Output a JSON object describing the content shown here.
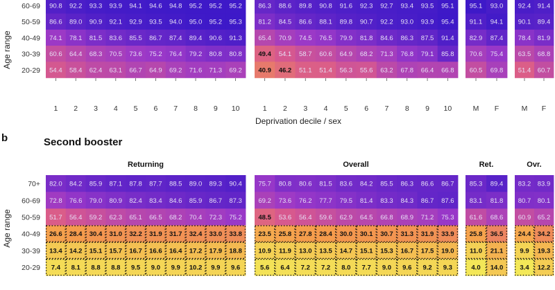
{
  "panel_a": {
    "ylabel": "Age range",
    "xlabel": "Deprivation decile / sex",
    "rows": [
      "60-69",
      "50-59",
      "40-49",
      "30-39",
      "20-29"
    ],
    "deciles": [
      "1",
      "2",
      "3",
      "4",
      "5",
      "6",
      "7",
      "8",
      "9",
      "10"
    ],
    "sexes": [
      "M",
      "F"
    ]
  },
  "panel_b": {
    "letter": "b",
    "title": "Second booster",
    "ylabel": "Age range",
    "rows": [
      "70+",
      "60-69",
      "50-59",
      "40-49",
      "30-39",
      "20-29"
    ],
    "strips": {
      "returning": "Returning",
      "overall": "Overall",
      "ret": "Ret.",
      "ovr": "Ovr."
    }
  },
  "colors": {
    "low": "#f3f35a",
    "mid_low": "#f59a4c",
    "mid": "#d95a8c",
    "mid_high": "#9a38c8",
    "high": "#3a18c8"
  },
  "chart_data": [
    {
      "type": "heatmap",
      "title": "",
      "xlabel": "Deprivation decile / sex",
      "ylabel": "Age range",
      "row_categories": [
        "60-69",
        "50-59",
        "40-49",
        "30-39",
        "20-29"
      ],
      "groups": [
        {
          "columns": [
            "1",
            "2",
            "3",
            "4",
            "5",
            "6",
            "7",
            "8",
            "9",
            "10"
          ],
          "values": [
            [
              90.8,
              92.2,
              93.3,
              93.9,
              94.1,
              94.6,
              94.8,
              95.2,
              95.2,
              95.2
            ],
            [
              86.6,
              89.0,
              90.9,
              92.1,
              92.9,
              93.5,
              94.0,
              95.0,
              95.2,
              95.3
            ],
            [
              74.1,
              78.1,
              81.5,
              83.6,
              85.5,
              86.7,
              87.4,
              89.4,
              90.6,
              91.3
            ],
            [
              60.6,
              64.4,
              68.3,
              70.5,
              73.6,
              75.2,
              76.4,
              79.2,
              80.8,
              80.8
            ],
            [
              54.4,
              58.4,
              62.4,
              63.1,
              66.7,
              64.9,
              69.2,
              71.6,
              71.3,
              69.2
            ]
          ]
        },
        {
          "columns": [
            "1",
            "2",
            "3",
            "4",
            "5",
            "6",
            "7",
            "8",
            "9",
            "10"
          ],
          "values": [
            [
              86.3,
              88.6,
              89.8,
              90.8,
              91.6,
              92.3,
              92.7,
              93.4,
              93.5,
              95.1
            ],
            [
              81.2,
              84.5,
              86.6,
              88.1,
              89.8,
              90.7,
              92.2,
              93.0,
              93.9,
              95.4
            ],
            [
              65.4,
              70.9,
              74.5,
              76.5,
              79.9,
              81.8,
              84.6,
              86.3,
              87.5,
              91.4
            ],
            [
              49.4,
              54.1,
              58.7,
              60.6,
              64.9,
              68.2,
              71.3,
              76.8,
              79.1,
              85.8
            ],
            [
              40.9,
              46.2,
              51.1,
              51.4,
              56.3,
              55.6,
              63.2,
              67.8,
              66.4,
              66.8
            ]
          ]
        },
        {
          "columns": [
            "M",
            "F"
          ],
          "values": [
            [
              95.1,
              93.0
            ],
            [
              91.1,
              94.1
            ],
            [
              82.9,
              87.4
            ],
            [
              70.6,
              75.4
            ],
            [
              60.5,
              69.8
            ]
          ]
        },
        {
          "columns": [
            "M",
            "F"
          ],
          "values": [
            [
              92.4,
              91.4
            ],
            [
              90.1,
              89.4
            ],
            [
              78.4,
              81.9
            ],
            [
              63.5,
              68.8
            ],
            [
              51.4,
              60.7
            ]
          ]
        }
      ]
    },
    {
      "type": "heatmap",
      "title": "Second booster",
      "xlabel": "",
      "ylabel": "Age range",
      "row_categories": [
        "70+",
        "60-69",
        "50-59",
        "40-49",
        "30-39",
        "20-29"
      ],
      "groups": [
        {
          "name": "Returning",
          "values": [
            [
              82.0,
              84.2,
              85.9,
              87.1,
              87.8,
              87.7,
              88.5,
              89.0,
              89.3,
              90.4
            ],
            [
              72.8,
              76.6,
              79.0,
              80.9,
              82.4,
              83.4,
              84.6,
              85.9,
              86.7,
              87.3
            ],
            [
              51.7,
              56.4,
              59.2,
              62.3,
              65.1,
              66.5,
              68.2,
              70.4,
              72.3,
              75.2
            ],
            [
              26.6,
              28.4,
              30.4,
              31.0,
              32.2,
              31.9,
              31.7,
              32.4,
              33.0,
              33.8
            ],
            [
              13.4,
              14.2,
              15.1,
              15.7,
              16.7,
              16.6,
              16.4,
              17.2,
              17.9,
              18.8
            ],
            [
              7.4,
              8.1,
              8.8,
              8.8,
              9.5,
              9.0,
              9.9,
              10.2,
              9.9,
              9.6
            ]
          ]
        },
        {
          "name": "Overall",
          "values": [
            [
              75.7,
              80.8,
              80.6,
              81.5,
              83.6,
              84.2,
              85.5,
              86.3,
              86.6,
              86.7
            ],
            [
              69.2,
              73.6,
              76.2,
              77.7,
              79.5,
              81.4,
              83.3,
              84.3,
              86.7,
              87.6
            ],
            [
              48.5,
              53.6,
              56.4,
              59.6,
              62.9,
              64.5,
              66.8,
              68.9,
              71.2,
              75.3
            ],
            [
              23.5,
              25.8,
              27.8,
              28.4,
              30.0,
              30.1,
              30.7,
              31.3,
              31.9,
              33.9
            ],
            [
              10.9,
              11.9,
              13.0,
              13.5,
              14.7,
              15.1,
              15.3,
              16.7,
              17.5,
              19.0
            ],
            [
              5.6,
              6.4,
              7.2,
              7.2,
              8.0,
              7.7,
              9.0,
              9.6,
              9.2,
              9.3
            ]
          ]
        },
        {
          "name": "Ret.",
          "values": [
            [
              85.3,
              89.4
            ],
            [
              83.1,
              81.8
            ],
            [
              61.6,
              68.6
            ],
            [
              25.8,
              36.5
            ],
            [
              11.0,
              21.1
            ],
            [
              4.0,
              14.0
            ]
          ]
        },
        {
          "name": "Ovr.",
          "values": [
            [
              83.2,
              83.9
            ],
            [
              80.7,
              80.1
            ],
            [
              60.9,
              65.2
            ],
            [
              24.4,
              34.2
            ],
            [
              9.9,
              19.3
            ],
            [
              3.4,
              12.2
            ]
          ]
        }
      ]
    }
  ]
}
